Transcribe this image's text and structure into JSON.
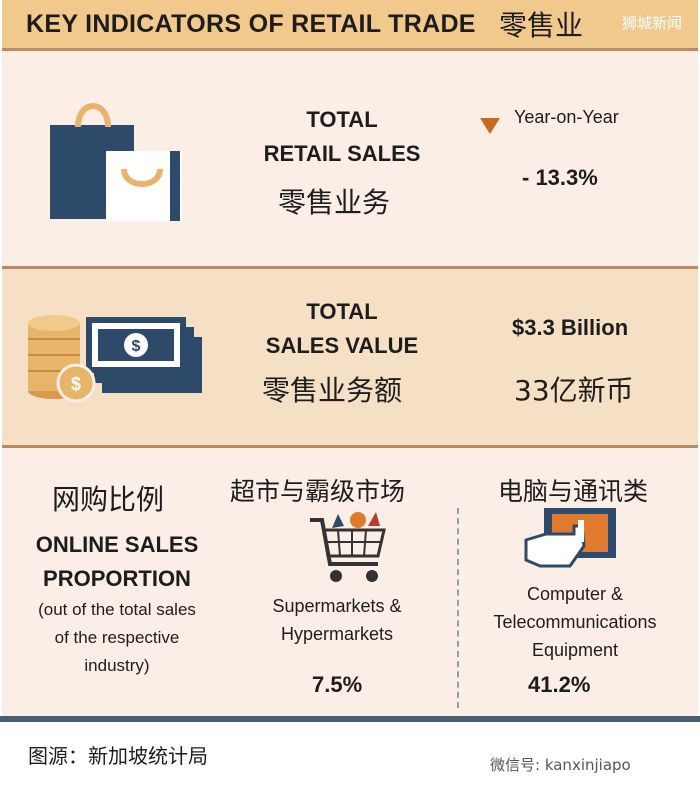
{
  "header": {
    "title": "KEY INDICATORS OF RETAIL TRADE",
    "title_cn": "零售业",
    "watermark": "狮城新闻"
  },
  "retail_sales": {
    "label_line1": "TOTAL",
    "label_line2": "RETAIL SALES",
    "label_cn": "零售业务",
    "period_label": "Year-on-Year",
    "change": "- 13.3%",
    "trend_icon": "triangle-down-icon",
    "trend_color": "#c96a1e"
  },
  "sales_value": {
    "label_line1": "TOTAL",
    "label_line2": "SALES VALUE",
    "label_cn": "零售业务额",
    "value": "$3.3 Billion",
    "value_cn": "33亿新币"
  },
  "online": {
    "label_cn": "网购比例",
    "label_line1": "ONLINE SALES",
    "label_line2": "PROPORTION",
    "note_line1": "(out of the total sales",
    "note_line2": "of the respective",
    "note_line3": "industry)",
    "categories": [
      {
        "name_cn": "超市与霸级市场",
        "name_line1": "Supermarkets &",
        "name_line2": "Hypermarkets",
        "name_line3": "",
        "value": "7.5%",
        "icon": "shopping-cart-icon"
      },
      {
        "name_cn": "电脑与通讯类",
        "name_line1": "Computer &",
        "name_line2": "Telecommunications",
        "name_line3": "Equipment",
        "value": "41.2%",
        "icon": "tablet-touch-icon"
      }
    ]
  },
  "footer": {
    "source": "图源：新加坡统计局",
    "wechat": "微信号: kanxinjiapo"
  },
  "colors": {
    "header_bg": "#f2c98c",
    "panel_light": "#fbeee6",
    "panel_mid": "#f5dfc5",
    "navy": "#2e4a6a",
    "orange": "#e07a2e",
    "gold": "#e8b46a"
  }
}
